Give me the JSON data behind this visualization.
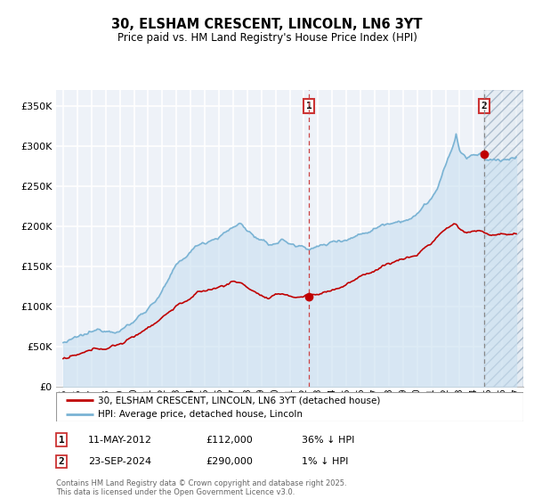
{
  "title": "30, ELSHAM CRESCENT, LINCOLN, LN6 3YT",
  "subtitle": "Price paid vs. HM Land Registry's House Price Index (HPI)",
  "legend_line1": "30, ELSHAM CRESCENT, LINCOLN, LN6 3YT (detached house)",
  "legend_line2": "HPI: Average price, detached house, Lincoln",
  "footer": "Contains HM Land Registry data © Crown copyright and database right 2025.\nThis data is licensed under the Open Government Licence v3.0.",
  "sale1_label": "1",
  "sale1_date": "11-MAY-2012",
  "sale1_price": "£112,000",
  "sale1_note": "36% ↓ HPI",
  "sale2_label": "2",
  "sale2_date": "23-SEP-2024",
  "sale2_price": "£290,000",
  "sale2_note": "1% ↓ HPI",
  "hpi_color": "#7ab3d4",
  "hpi_fill_color": "#c8dff0",
  "price_color": "#c00000",
  "sale1_vline_color": "#cc4444",
  "sale2_vline_color": "#888888",
  "marker1_x": 2012.36,
  "marker1_y": 112000,
  "marker2_x": 2024.73,
  "marker2_y": 290000,
  "ylim": [
    0,
    370000
  ],
  "xlim": [
    1994.5,
    2027.5
  ],
  "ylabel_ticks": [
    0,
    50000,
    100000,
    150000,
    200000,
    250000,
    300000,
    350000
  ],
  "xticks": [
    1995,
    1996,
    1997,
    1998,
    1999,
    2000,
    2001,
    2002,
    2003,
    2004,
    2005,
    2006,
    2007,
    2008,
    2009,
    2010,
    2011,
    2012,
    2013,
    2014,
    2015,
    2016,
    2017,
    2018,
    2019,
    2020,
    2021,
    2022,
    2023,
    2024,
    2025,
    2026,
    2027
  ],
  "bg_color": "#eef2f8",
  "hatch_region_start": 2024.73,
  "grid_color": "white"
}
